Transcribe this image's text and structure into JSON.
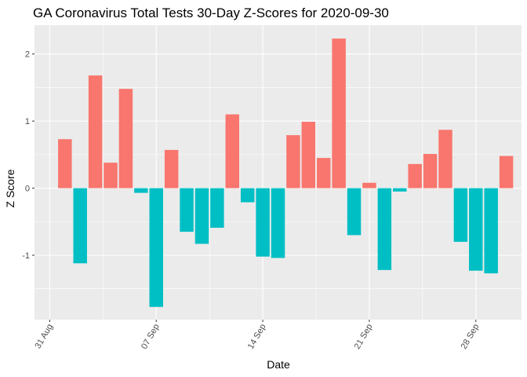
{
  "chart_data": {
    "type": "bar",
    "title": "GA Coronavirus Total Tests 30-Day Z-Scores for 2020-09-30",
    "xlabel": "Date",
    "ylabel": "Z Score",
    "x": [
      "2020-09-01",
      "2020-09-02",
      "2020-09-03",
      "2020-09-04",
      "2020-09-05",
      "2020-09-06",
      "2020-09-07",
      "2020-09-08",
      "2020-09-09",
      "2020-09-10",
      "2020-09-11",
      "2020-09-12",
      "2020-09-13",
      "2020-09-14",
      "2020-09-15",
      "2020-09-16",
      "2020-09-17",
      "2020-09-18",
      "2020-09-19",
      "2020-09-20",
      "2020-09-21",
      "2020-09-22",
      "2020-09-23",
      "2020-09-24",
      "2020-09-25",
      "2020-09-26",
      "2020-09-27",
      "2020-09-28",
      "2020-09-29",
      "2020-09-30"
    ],
    "values": [
      0.73,
      -1.12,
      1.68,
      0.38,
      1.48,
      -0.07,
      -1.77,
      0.57,
      -0.65,
      -0.83,
      -0.59,
      1.1,
      -0.21,
      -1.02,
      -1.04,
      0.79,
      0.99,
      0.45,
      2.23,
      -0.7,
      0.08,
      -1.22,
      -0.05,
      0.36,
      0.51,
      0.87,
      -0.8,
      -1.23,
      -1.27,
      0.48
    ],
    "x_ticks": [
      {
        "date": "2020-08-31",
        "label": "31 Aug"
      },
      {
        "date": "2020-09-07",
        "label": "07 Sep"
      },
      {
        "date": "2020-09-14",
        "label": "14 Sep"
      },
      {
        "date": "2020-09-21",
        "label": "21 Sep"
      },
      {
        "date": "2020-09-28",
        "label": "28 Sep"
      }
    ],
    "xlim": [
      "2020-08-30",
      "2020-10-01"
    ],
    "y_ticks": [
      2,
      1,
      0,
      -1
    ],
    "ylim": [
      -1.96,
      2.43
    ],
    "colors": {
      "positive": "#F8766D",
      "negative": "#00BFC4",
      "panel": "#EBEBEB",
      "grid": "#FFFFFF"
    },
    "grid": true,
    "legend": "none"
  }
}
